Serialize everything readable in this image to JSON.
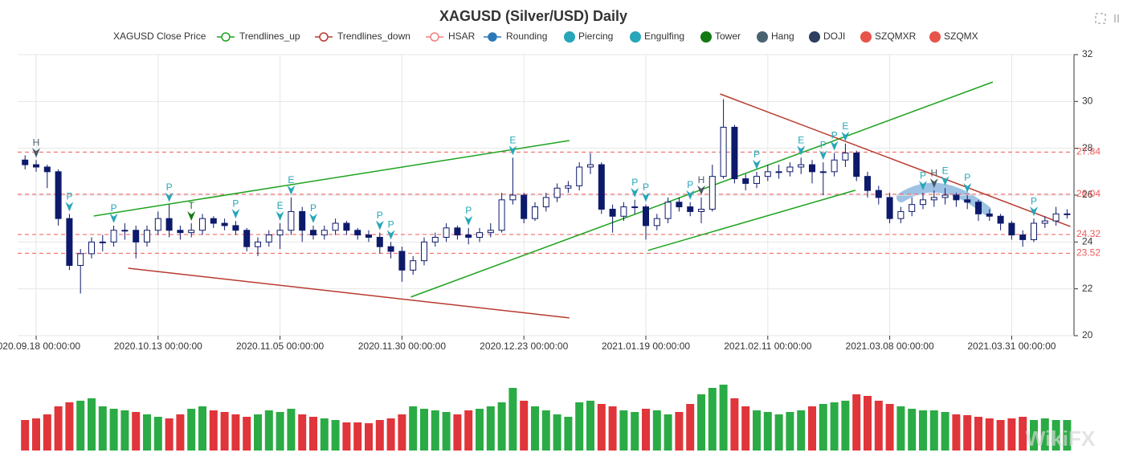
{
  "chart_data": {
    "type": "candlestick",
    "title": "XAGUSD (Silver/USD) Daily",
    "watermark": "WikiFX",
    "up_color": "#ffffff",
    "down_color": "#0d1a6b",
    "border_color": "#0d1a6b",
    "volume_up_color": "#2bab45",
    "volume_down_color": "#e0353a",
    "ylim": [
      20,
      32
    ],
    "yticks": [
      20,
      22,
      24,
      26,
      28,
      30,
      32
    ],
    "grid": true,
    "categories": [
      null,
      "2020.09.18 00:00:00",
      null,
      null,
      null,
      null,
      null,
      null,
      null,
      null,
      null,
      null,
      "2020.10.13 00:00:00",
      null,
      null,
      null,
      null,
      null,
      null,
      null,
      null,
      null,
      null,
      "2020.11.05 00:00:00",
      null,
      null,
      null,
      null,
      null,
      null,
      null,
      null,
      null,
      null,
      "2020.11.30 00:00:00",
      null,
      null,
      null,
      null,
      null,
      null,
      null,
      null,
      null,
      null,
      "2020.12.23 00:00:00",
      null,
      null,
      null,
      null,
      null,
      null,
      null,
      null,
      null,
      null,
      "2021.01.19 00:00:00",
      null,
      null,
      null,
      null,
      null,
      null,
      null,
      null,
      null,
      null,
      "2021.02.11 00:00:00",
      null,
      null,
      null,
      null,
      null,
      null,
      null,
      null,
      null,
      null,
      "2021.03.08 00:00:00",
      null,
      null,
      null,
      null,
      null,
      null,
      null,
      null,
      null,
      null,
      "2021.03.31 00:00:00",
      null,
      null,
      null,
      null,
      null
    ],
    "ohlc": [
      [
        27.5,
        27.7,
        27.1,
        27.3
      ],
      [
        27.3,
        27.5,
        27.0,
        27.2
      ],
      [
        27.2,
        27.3,
        26.3,
        27.0
      ],
      [
        27.0,
        27.1,
        24.7,
        25.0
      ],
      [
        25.0,
        25.2,
        22.8,
        23.0
      ],
      [
        23.0,
        23.7,
        21.8,
        23.5
      ],
      [
        23.5,
        24.2,
        23.3,
        24.0
      ],
      [
        24.0,
        24.3,
        23.6,
        24.0
      ],
      [
        24.0,
        24.7,
        23.8,
        24.5
      ],
      [
        24.5,
        24.8,
        24.1,
        24.5
      ],
      [
        24.5,
        24.7,
        23.3,
        24.0
      ],
      [
        24.0,
        24.7,
        23.8,
        24.5
      ],
      [
        24.5,
        25.3,
        24.3,
        25.0
      ],
      [
        25.0,
        25.6,
        24.2,
        24.5
      ],
      [
        24.5,
        24.7,
        24.1,
        24.4
      ],
      [
        24.4,
        24.8,
        24.2,
        24.5
      ],
      [
        24.5,
        25.2,
        24.3,
        25.0
      ],
      [
        25.0,
        25.1,
        24.6,
        24.8
      ],
      [
        24.8,
        25.0,
        24.5,
        24.7
      ],
      [
        24.7,
        24.9,
        24.3,
        24.5
      ],
      [
        24.5,
        24.6,
        23.6,
        23.8
      ],
      [
        23.8,
        24.2,
        23.4,
        24.0
      ],
      [
        24.0,
        24.5,
        23.8,
        24.3
      ],
      [
        24.3,
        24.8,
        23.7,
        24.5
      ],
      [
        24.5,
        25.9,
        24.3,
        25.3
      ],
      [
        25.3,
        25.5,
        24.0,
        24.5
      ],
      [
        24.5,
        24.7,
        24.1,
        24.3
      ],
      [
        24.3,
        24.7,
        24.1,
        24.5
      ],
      [
        24.5,
        25.0,
        24.3,
        24.8
      ],
      [
        24.8,
        24.9,
        24.3,
        24.5
      ],
      [
        24.5,
        24.6,
        24.1,
        24.3
      ],
      [
        24.3,
        24.5,
        24.0,
        24.2
      ],
      [
        24.2,
        24.4,
        23.5,
        23.8
      ],
      [
        23.8,
        24.0,
        23.3,
        23.6
      ],
      [
        23.6,
        23.8,
        22.3,
        22.8
      ],
      [
        22.8,
        23.4,
        22.6,
        23.2
      ],
      [
        23.2,
        24.2,
        23.0,
        24.0
      ],
      [
        24.0,
        24.4,
        23.8,
        24.2
      ],
      [
        24.2,
        24.8,
        24.0,
        24.6
      ],
      [
        24.6,
        24.7,
        24.1,
        24.3
      ],
      [
        24.3,
        24.6,
        23.9,
        24.2
      ],
      [
        24.2,
        24.6,
        24.0,
        24.4
      ],
      [
        24.4,
        24.8,
        24.2,
        24.5
      ],
      [
        24.5,
        26.1,
        24.4,
        25.8
      ],
      [
        25.8,
        27.6,
        25.6,
        26.0
      ],
      [
        26.0,
        26.1,
        24.8,
        25.0
      ],
      [
        25.0,
        25.7,
        24.9,
        25.5
      ],
      [
        25.5,
        26.1,
        25.3,
        25.9
      ],
      [
        25.9,
        26.5,
        25.7,
        26.3
      ],
      [
        26.3,
        26.6,
        26.1,
        26.4
      ],
      [
        26.4,
        27.4,
        26.2,
        27.2
      ],
      [
        27.2,
        27.8,
        26.9,
        27.3
      ],
      [
        27.3,
        27.4,
        25.2,
        25.4
      ],
      [
        25.4,
        25.6,
        24.4,
        25.1
      ],
      [
        25.1,
        25.7,
        24.9,
        25.5
      ],
      [
        25.5,
        25.8,
        25.2,
        25.5
      ],
      [
        25.5,
        25.6,
        24.1,
        24.7
      ],
      [
        24.7,
        25.2,
        24.5,
        25.0
      ],
      [
        25.0,
        25.9,
        24.8,
        25.7
      ],
      [
        25.7,
        25.9,
        25.3,
        25.5
      ],
      [
        25.5,
        25.7,
        25.1,
        25.3
      ],
      [
        25.3,
        25.9,
        24.8,
        25.4
      ],
      [
        25.4,
        27.3,
        25.3,
        26.8
      ],
      [
        26.8,
        30.1,
        26.7,
        28.9
      ],
      [
        28.9,
        29.0,
        26.5,
        26.7
      ],
      [
        26.7,
        26.9,
        26.2,
        26.5
      ],
      [
        26.5,
        27.0,
        26.3,
        26.8
      ],
      [
        26.8,
        27.3,
        26.6,
        27.0
      ],
      [
        27.0,
        27.3,
        26.7,
        27.0
      ],
      [
        27.0,
        27.4,
        26.8,
        27.2
      ],
      [
        27.2,
        27.6,
        26.9,
        27.3
      ],
      [
        27.3,
        27.5,
        26.5,
        27.0
      ],
      [
        27.0,
        27.4,
        26.0,
        27.0
      ],
      [
        27.0,
        27.8,
        26.8,
        27.5
      ],
      [
        27.5,
        28.2,
        27.2,
        27.8
      ],
      [
        27.8,
        27.9,
        26.6,
        26.8
      ],
      [
        26.8,
        27.0,
        25.9,
        26.2
      ],
      [
        26.2,
        26.4,
        25.6,
        25.9
      ],
      [
        25.9,
        26.1,
        24.8,
        25.0
      ],
      [
        25.0,
        25.5,
        24.8,
        25.3
      ],
      [
        25.3,
        25.9,
        25.1,
        25.6
      ],
      [
        25.6,
        26.1,
        25.4,
        25.8
      ],
      [
        25.8,
        26.2,
        25.5,
        25.9
      ],
      [
        25.9,
        26.3,
        25.6,
        26.0
      ],
      [
        26.0,
        26.1,
        25.5,
        25.8
      ],
      [
        25.8,
        26.0,
        25.4,
        25.7
      ],
      [
        25.7,
        25.8,
        24.9,
        25.2
      ],
      [
        25.2,
        25.4,
        24.9,
        25.1
      ],
      [
        25.1,
        25.2,
        24.5,
        24.8
      ],
      [
        24.8,
        24.9,
        24.1,
        24.3
      ],
      [
        24.3,
        24.5,
        23.8,
        24.1
      ],
      [
        24.1,
        25.0,
        24.0,
        24.8
      ],
      [
        24.8,
        25.1,
        24.6,
        24.9
      ],
      [
        24.9,
        25.5,
        24.7,
        25.2
      ],
      [
        25.2,
        25.4,
        25.0,
        25.2
      ]
    ],
    "volume": [
      38,
      40,
      45,
      55,
      60,
      62,
      65,
      55,
      52,
      50,
      48,
      45,
      42,
      40,
      45,
      52,
      55,
      50,
      48,
      45,
      42,
      45,
      50,
      48,
      52,
      45,
      42,
      40,
      38,
      35,
      35,
      34,
      38,
      40,
      45,
      55,
      52,
      50,
      48,
      45,
      50,
      52,
      55,
      60,
      78,
      62,
      55,
      50,
      45,
      42,
      60,
      62,
      58,
      55,
      50,
      48,
      52,
      50,
      45,
      48,
      58,
      70,
      78,
      82,
      65,
      55,
      50,
      48,
      45,
      48,
      50,
      55,
      58,
      60,
      62,
      70,
      68,
      62,
      58,
      55,
      52,
      50,
      50,
      48,
      45,
      44,
      42,
      40,
      38,
      40,
      42,
      38,
      40,
      38,
      38
    ],
    "hsar": [
      27.84,
      26.04,
      24.32,
      23.52
    ],
    "hsar_color": "#f05a5a",
    "trendlines": [
      {
        "color": "#1ea31e",
        "x": [
          6.2,
          49.1
        ],
        "y": [
          25.11,
          28.33
        ]
      },
      {
        "color": "#1ea31e",
        "x": [
          34.8,
          87.3
        ],
        "y": [
          21.65,
          30.83
        ]
      },
      {
        "color": "#1ea31e",
        "x": [
          56.2,
          74.9
        ],
        "y": [
          23.64,
          26.21
        ]
      },
      {
        "color": "#b83a2e",
        "x": [
          9.3,
          49.1
        ],
        "y": [
          22.88,
          20.76
        ]
      },
      {
        "color": "#b83a2e",
        "x": [
          62.7,
          94.3
        ],
        "y": [
          30.32,
          24.66
        ]
      }
    ],
    "markers": [
      {
        "index": 1,
        "label": "H",
        "color": "#4a5a66"
      },
      {
        "index": 4,
        "label": "P",
        "color": "#26a6b8"
      },
      {
        "index": 8,
        "label": "P",
        "color": "#26a6b8"
      },
      {
        "index": 13,
        "label": "P",
        "color": "#26a6b8"
      },
      {
        "index": 15,
        "label": "T",
        "color": "#127a12"
      },
      {
        "index": 19,
        "label": "P",
        "color": "#26a6b8"
      },
      {
        "index": 23,
        "label": "E",
        "color": "#26a6b8"
      },
      {
        "index": 24,
        "label": "E",
        "color": "#26a6b8"
      },
      {
        "index": 26,
        "label": "P",
        "color": "#26a6b8"
      },
      {
        "index": 32,
        "label": "P",
        "color": "#26a6b8"
      },
      {
        "index": 33,
        "label": "P",
        "color": "#26a6b8"
      },
      {
        "index": 40,
        "label": "P",
        "color": "#26a6b8"
      },
      {
        "index": 44,
        "label": "E",
        "color": "#26a6b8"
      },
      {
        "index": 55,
        "label": "P",
        "color": "#26a6b8"
      },
      {
        "index": 56,
        "label": "P",
        "color": "#26a6b8"
      },
      {
        "index": 60,
        "label": "P",
        "color": "#26a6b8"
      },
      {
        "index": 61,
        "label": "H",
        "color": "#4a5a66"
      },
      {
        "index": 66,
        "label": "P",
        "color": "#26a6b8"
      },
      {
        "index": 70,
        "label": "E",
        "color": "#26a6b8"
      },
      {
        "index": 72,
        "label": "P",
        "color": "#26a6b8"
      },
      {
        "index": 73,
        "label": "P",
        "color": "#26a6b8"
      },
      {
        "index": 74,
        "label": "E",
        "color": "#26a6b8"
      },
      {
        "index": 81,
        "label": "P",
        "color": "#26a6b8"
      },
      {
        "index": 82,
        "label": "H",
        "color": "#4a5a66"
      },
      {
        "index": 83,
        "label": "E",
        "color": "#26a6b8"
      },
      {
        "index": 85,
        "label": "P",
        "color": "#26a6b8"
      },
      {
        "index": 91,
        "label": "P",
        "color": "#26a6b8"
      }
    ],
    "legend": [
      {
        "name": "XAGUSD Close Price",
        "color": "#ffffff",
        "icon": "none"
      },
      {
        "name": "Trendlines_up",
        "color": "#1ea31e",
        "icon": "line"
      },
      {
        "name": "Trendlines_down",
        "color": "#b83a2e",
        "icon": "line"
      },
      {
        "name": "HSAR",
        "color": "#f08080",
        "icon": "line"
      },
      {
        "name": "Rounding",
        "color": "#2a78b8",
        "icon": "line"
      },
      {
        "name": "Piercing",
        "color": "#26a6b8",
        "icon": "circle"
      },
      {
        "name": "Engulfing",
        "color": "#26a6b8",
        "icon": "circle"
      },
      {
        "name": "Tower",
        "color": "#127a12",
        "icon": "circle"
      },
      {
        "name": "Hang",
        "color": "#4a6272",
        "icon": "circle"
      },
      {
        "name": "DOJI",
        "color": "#2d3e5e",
        "icon": "circle"
      },
      {
        "name": "SZQMXR",
        "color": "#e8534a",
        "icon": "circle"
      },
      {
        "name": "SZQMX",
        "color": "#e8534a",
        "icon": "circle"
      }
    ]
  }
}
